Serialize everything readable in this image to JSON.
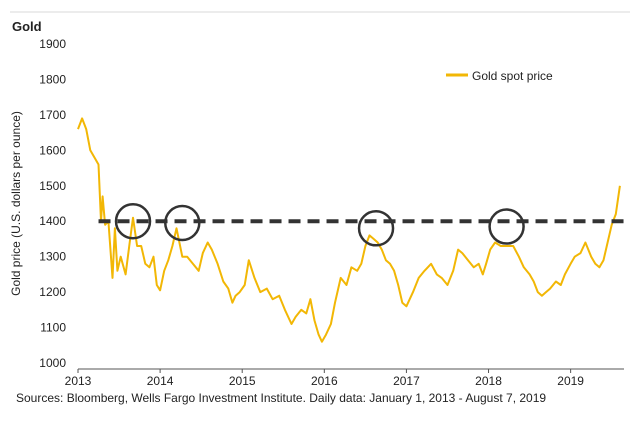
{
  "chart_data": {
    "type": "line",
    "title": "Gold",
    "ylabel": "Gold price (U.S. dollars per ounce)",
    "xlabel": "",
    "ylim": [
      1000,
      1900
    ],
    "xlim": [
      2013.0,
      2019.65
    ],
    "yticks": [
      1000,
      1100,
      1200,
      1300,
      1400,
      1500,
      1600,
      1700,
      1800,
      1900
    ],
    "xticks": [
      2013,
      2014,
      2015,
      2016,
      2017,
      2018,
      2019
    ],
    "grid": false,
    "legend": {
      "position": "top-right"
    },
    "series": [
      {
        "name": "Gold spot price",
        "color": "#F2B705",
        "x": [
          2013.0,
          2013.05,
          2013.1,
          2013.15,
          2013.2,
          2013.25,
          2013.28,
          2013.3,
          2013.33,
          2013.37,
          2013.42,
          2013.45,
          2013.48,
          2013.52,
          2013.58,
          2013.63,
          2013.67,
          2013.72,
          2013.77,
          2013.82,
          2013.87,
          2013.92,
          2013.96,
          2014.0,
          2014.05,
          2014.1,
          2014.15,
          2014.2,
          2014.27,
          2014.33,
          2014.4,
          2014.47,
          2014.52,
          2014.58,
          2014.63,
          2014.7,
          2014.77,
          2014.83,
          2014.88,
          2014.92,
          2014.97,
          2015.03,
          2015.08,
          2015.15,
          2015.22,
          2015.3,
          2015.37,
          2015.45,
          2015.52,
          2015.6,
          2015.65,
          2015.72,
          2015.78,
          2015.83,
          2015.88,
          2015.93,
          2015.97,
          2016.02,
          2016.08,
          2016.13,
          2016.2,
          2016.27,
          2016.33,
          2016.4,
          2016.45,
          2016.5,
          2016.55,
          2016.6,
          2016.65,
          2016.7,
          2016.75,
          2016.8,
          2016.85,
          2016.9,
          2016.95,
          2017.0,
          2017.08,
          2017.15,
          2017.22,
          2017.3,
          2017.37,
          2017.43,
          2017.5,
          2017.57,
          2017.63,
          2017.68,
          2017.75,
          2017.82,
          2017.88,
          2017.93,
          2017.97,
          2018.02,
          2018.08,
          2018.15,
          2018.22,
          2018.3,
          2018.37,
          2018.43,
          2018.5,
          2018.55,
          2018.6,
          2018.65,
          2018.7,
          2018.75,
          2018.82,
          2018.88,
          2018.93,
          2019.0,
          2019.05,
          2019.12,
          2019.18,
          2019.25,
          2019.3,
          2019.35,
          2019.4,
          2019.45,
          2019.5,
          2019.55,
          2019.6
        ],
        "y": [
          1660,
          1690,
          1660,
          1600,
          1580,
          1560,
          1400,
          1470,
          1390,
          1400,
          1240,
          1380,
          1260,
          1300,
          1250,
          1340,
          1410,
          1330,
          1330,
          1280,
          1270,
          1300,
          1220,
          1205,
          1260,
          1290,
          1330,
          1380,
          1300,
          1300,
          1280,
          1260,
          1310,
          1340,
          1320,
          1280,
          1230,
          1210,
          1170,
          1190,
          1200,
          1220,
          1290,
          1240,
          1200,
          1210,
          1180,
          1190,
          1150,
          1110,
          1130,
          1150,
          1140,
          1180,
          1120,
          1080,
          1060,
          1080,
          1110,
          1170,
          1240,
          1220,
          1270,
          1260,
          1280,
          1330,
          1360,
          1350,
          1340,
          1320,
          1290,
          1280,
          1260,
          1220,
          1170,
          1160,
          1200,
          1240,
          1260,
          1280,
          1250,
          1240,
          1220,
          1260,
          1320,
          1310,
          1290,
          1270,
          1280,
          1250,
          1280,
          1320,
          1340,
          1330,
          1330,
          1330,
          1300,
          1270,
          1250,
          1230,
          1200,
          1190,
          1200,
          1210,
          1230,
          1220,
          1250,
          1280,
          1300,
          1310,
          1340,
          1300,
          1280,
          1270,
          1290,
          1340,
          1390,
          1420,
          1500
        ]
      }
    ],
    "reference_line": {
      "y": 1400,
      "style": "dashed",
      "color": "#333333"
    },
    "annotations": [
      {
        "type": "circle",
        "x": 2013.67,
        "y": 1400
      },
      {
        "type": "circle",
        "x": 2014.27,
        "y": 1395
      },
      {
        "type": "circle",
        "x": 2016.63,
        "y": 1380
      },
      {
        "type": "circle",
        "x": 2018.22,
        "y": 1385
      }
    ],
    "footnote": "Sources: Bloomberg, Wells Fargo Investment Institute. Daily data: January 1, 2013 - August 7, 2019"
  }
}
